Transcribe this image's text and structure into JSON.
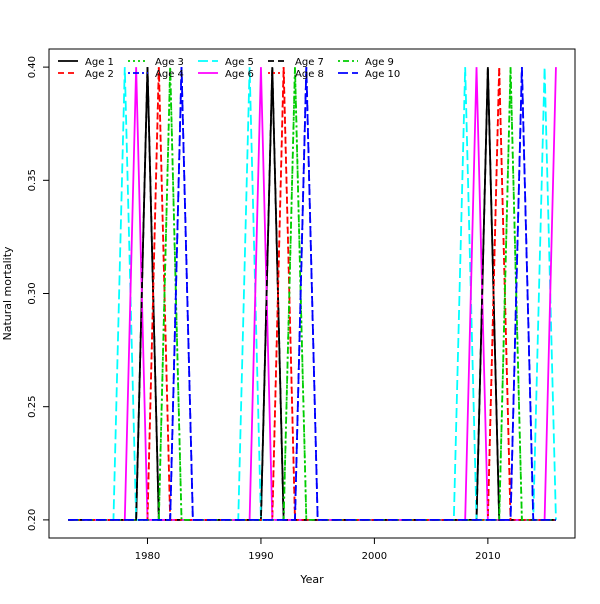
{
  "chart_data": {
    "type": "line",
    "title": "",
    "xlabel": "Year",
    "ylabel": "Natural mortality",
    "xlim": [
      1971.32,
      2017.68
    ],
    "ylim": [
      0.192,
      0.408
    ],
    "x_ticks": [
      1980,
      1990,
      2000,
      2010
    ],
    "y_ticks": [
      0.2,
      0.25,
      0.3,
      0.35,
      0.4
    ],
    "x_tick_labels": [
      "1980",
      "1990",
      "2000",
      "2010"
    ],
    "y_tick_labels": [
      "0.20",
      "0.25",
      "0.30",
      "0.35",
      "0.40"
    ],
    "grid": false,
    "legend_position": "top-left",
    "baseline": 0.2,
    "peak": 0.4,
    "x_start": 1973,
    "x_end": 2016,
    "series": [
      {
        "name": "Age 1",
        "color": "#000000",
        "dash": "solid",
        "peaks": [
          1980,
          1991,
          2010
        ]
      },
      {
        "name": "Age 2",
        "color": "#FF0000",
        "dash": "dashed",
        "peaks": [
          1981,
          1992,
          2011
        ]
      },
      {
        "name": "Age 3",
        "color": "#00CD00",
        "dash": "dotted",
        "peaks": [
          1982,
          1993,
          2012
        ]
      },
      {
        "name": "Age 4",
        "color": "#0000FF",
        "dash": "dotdash",
        "peaks": [
          1983,
          1994,
          2013
        ]
      },
      {
        "name": "Age 5",
        "color": "#00FFFF",
        "dash": "longdash",
        "peaks": [
          1978,
          1989,
          2008,
          2015
        ]
      },
      {
        "name": "Age 6",
        "color": "#FF00FF",
        "dash": "solid",
        "peaks": [
          1979,
          1990,
          2009,
          2016
        ]
      },
      {
        "name": "Age 7",
        "color": "#000000",
        "dash": "dashed",
        "peaks": [
          1980,
          1991,
          2010
        ]
      },
      {
        "name": "Age 8",
        "color": "#FF0000",
        "dash": "dotted",
        "peaks": [
          1981,
          1992,
          2011
        ]
      },
      {
        "name": "Age 9",
        "color": "#00CD00",
        "dash": "dotdash",
        "peaks": [
          1982,
          1993,
          2012
        ]
      },
      {
        "name": "Age 10",
        "color": "#0000FF",
        "dash": "longdash",
        "peaks": [
          1983,
          1994,
          2013
        ]
      }
    ]
  }
}
